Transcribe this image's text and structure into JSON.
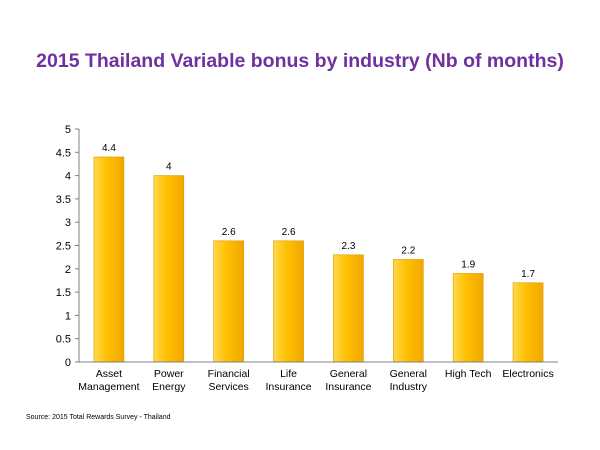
{
  "source": "Source: 2015 Total Rewards Survey - Thailand",
  "colors": {
    "title": "#7030a0",
    "bar_top": "#ffd84a",
    "bar_mid": "#ffbf00",
    "bar_bottom": "#f0a800",
    "axis": "#808080"
  },
  "chart_data": {
    "type": "bar",
    "title": "2015 Thailand Variable bonus by industry (Nb of months)",
    "categories": [
      [
        "Asset",
        "Management"
      ],
      [
        "Power",
        "Energy"
      ],
      [
        "Financial",
        "Services"
      ],
      [
        "Life",
        "Insurance"
      ],
      [
        "General",
        "Insurance"
      ],
      [
        "General",
        "Industry"
      ],
      [
        "High Tech"
      ],
      [
        "Electronics"
      ]
    ],
    "values": [
      4.4,
      4,
      2.6,
      2.6,
      2.3,
      2.2,
      1.9,
      1.7
    ],
    "value_labels": [
      "4.4",
      "4",
      "2.6",
      "2.6",
      "2.3",
      "2.2",
      "1.9",
      "1.7"
    ],
    "ylim": [
      0,
      5
    ],
    "yticks": [
      "0",
      "0.5",
      "1",
      "1.5",
      "2",
      "2.5",
      "3",
      "3.5",
      "4",
      "4.5",
      "5"
    ],
    "grid": false,
    "legend": false
  }
}
